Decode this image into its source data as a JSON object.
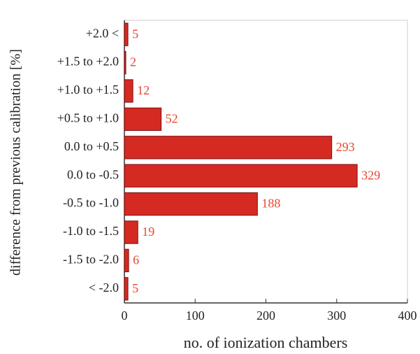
{
  "chart_data": {
    "type": "barh",
    "categories": [
      "+2.0 <",
      "+1.5 to +2.0",
      "+1.0 to +1.5",
      "+0.5 to +1.0",
      "0.0 to +0.5",
      "0.0 to -0.5",
      "-0.5 to -1.0",
      "-1.0 to -1.5",
      "-1.5 to -2.0",
      "< -2.0"
    ],
    "values": [
      5,
      2,
      12,
      52,
      293,
      329,
      188,
      19,
      6,
      5
    ],
    "color": "#d42a22",
    "label_color": "#e8452c",
    "xlabel": "no. of ionization chambers",
    "ylabel": "difference from previous calibration [%]",
    "xlim": [
      0,
      400
    ],
    "xticks": [
      0,
      100,
      200,
      300,
      400
    ]
  }
}
